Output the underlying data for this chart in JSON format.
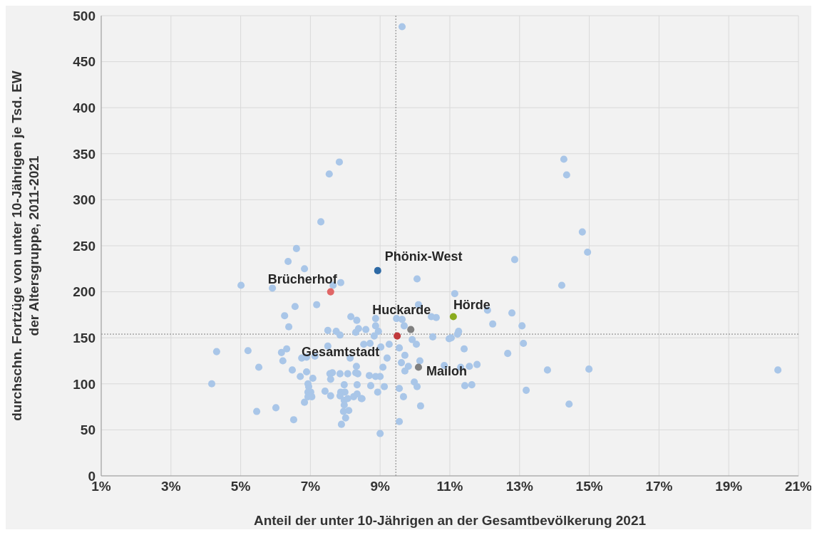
{
  "chart_data": {
    "type": "scatter",
    "xlabel": "Anteil der unter 10-Jährigen an der Gesamtbevölkerung 2021",
    "ylabel": "durchschn. Fortzüge von unter 10-Jährigen je Tsd. EW der Altersgruppe, 2011-2021",
    "xlim": [
      1,
      21
    ],
    "xticks": [
      {
        "value": 1,
        "label": "1%"
      },
      {
        "value": 3,
        "label": "3%"
      },
      {
        "value": 5,
        "label": "5%"
      },
      {
        "value": 7,
        "label": "7%"
      },
      {
        "value": 9,
        "label": "9%"
      },
      {
        "value": 11,
        "label": "11%"
      },
      {
        "value": 13,
        "label": "13%"
      },
      {
        "value": 15,
        "label": "15%"
      },
      {
        "value": 17,
        "label": "17%"
      },
      {
        "value": 19,
        "label": "19%"
      },
      {
        "value": 21,
        "label": "21%"
      }
    ],
    "ylim": [
      0,
      500
    ],
    "yticks": [
      0,
      50,
      100,
      150,
      200,
      250,
      300,
      350,
      400,
      450,
      500
    ],
    "grid": true,
    "marker": "circle",
    "ref_lines": [
      {
        "axis": "x",
        "value": 9.45,
        "color": "#7f7f7f",
        "line_style": "dotted"
      },
      {
        "axis": "y",
        "value": 154,
        "color": "#7f7f7f",
        "line_style": "dotted"
      }
    ],
    "series": [
      {
        "color": "#a9c6e8",
        "x": [
          9.63,
          7.83,
          7.54,
          7.3,
          14.27,
          14.35,
          14.8,
          14.95,
          12.86,
          14.21,
          6.6,
          6.36,
          6.83,
          5.01,
          5.91,
          7.87,
          7.65,
          6.56,
          7.18,
          6.26,
          8.16,
          8.33,
          6.38,
          8.38,
          7.5,
          7.74,
          7.85,
          8.3,
          4.31,
          5.21,
          6.17,
          6.32,
          6.21,
          7.5,
          7.13,
          6.75,
          6.89,
          8.14,
          8.32,
          5.52,
          6.48,
          6.89,
          6.71,
          7.07,
          7.56,
          7.63,
          7.58,
          7.85,
          8.07,
          8.3,
          8.36,
          4.17,
          6.93,
          7.97,
          8.34,
          6.95,
          7.42,
          7.58,
          6.93,
          7.01,
          6.93,
          7.04,
          6.83,
          7.87,
          7.99,
          7.85,
          7.97,
          8.07,
          8.24,
          8.34,
          7.97,
          7.95,
          8.1,
          8.01,
          7.89,
          5.46,
          6.01,
          6.52,
          8.46,
          10.06,
          11.14,
          10.1,
          12.08,
          12.78,
          12.23,
          10.47,
          10.61,
          8.87,
          9.47,
          9.63,
          9.69,
          8.87,
          8.59,
          8.95,
          8.83,
          11.25,
          11.22,
          11.04,
          10.98,
          10.51,
          9.92,
          10.04,
          11.41,
          12.66,
          9.55,
          9.71,
          9.26,
          9.2,
          9.02,
          8.71,
          8.53,
          10.14,
          9.61,
          9.81,
          9.71,
          10.84,
          11.31,
          11.56,
          11.78,
          9.08,
          8.69,
          8.87,
          9.0,
          9.98,
          10.06,
          9.55,
          9.12,
          8.73,
          8.93,
          8.48,
          9.67,
          11.43,
          11.63,
          10.16,
          9.55,
          9.0,
          13.07,
          13.11,
          13.8,
          14.99,
          20.41,
          13.19,
          14.42
        ],
        "values": [
          488,
          341,
          328,
          276,
          344,
          327,
          265,
          243,
          235,
          207,
          247,
          233,
          225,
          207,
          204,
          210,
          207,
          184,
          186,
          174,
          173,
          169,
          162,
          160,
          158,
          157,
          153,
          156,
          135,
          136,
          134,
          138,
          125,
          141,
          130,
          128,
          129,
          128,
          119,
          118,
          115,
          113,
          108,
          106,
          111,
          112,
          105,
          111,
          111,
          112,
          111,
          100,
          100,
          99,
          99,
          97,
          92,
          87,
          91,
          91,
          86,
          86,
          80,
          91,
          91,
          87,
          82,
          84,
          86,
          89,
          77,
          70,
          71,
          63,
          56,
          70,
          74,
          61,
          84,
          214,
          198,
          186,
          180,
          177,
          165,
          173,
          172,
          171,
          171,
          170,
          163,
          163,
          159,
          157,
          152,
          157,
          154,
          150,
          149,
          151,
          148,
          143,
          138,
          133,
          139,
          131,
          143,
          128,
          140,
          144,
          143,
          125,
          123,
          119,
          114,
          120,
          118,
          119,
          121,
          118,
          109,
          108,
          108,
          102,
          97,
          95,
          97,
          98,
          91,
          84,
          86,
          98,
          99,
          76,
          59,
          46,
          163,
          144,
          115,
          116,
          115,
          93,
          78
        ]
      },
      {
        "name": "Phönix-West",
        "color": "#2e6aa5",
        "x": [
          8.93
        ],
        "values": [
          223
        ]
      },
      {
        "name": "Brücherhof",
        "color": "#e06666",
        "x": [
          7.58
        ],
        "values": [
          200
        ]
      },
      {
        "name": "Huckarde",
        "color": "#7f7f7f",
        "x": [
          9.88
        ],
        "values": [
          159
        ]
      },
      {
        "name": "Hörde",
        "color": "#8aab1e",
        "x": [
          11.1
        ],
        "values": [
          173
        ]
      },
      {
        "name": "Gesamtstadt",
        "color": "#c0393b",
        "x": [
          9.49
        ],
        "values": [
          152
        ]
      },
      {
        "name": "Mailoh",
        "color": "#7f7f7f",
        "x": [
          10.1
        ],
        "values": [
          118
        ]
      }
    ]
  }
}
